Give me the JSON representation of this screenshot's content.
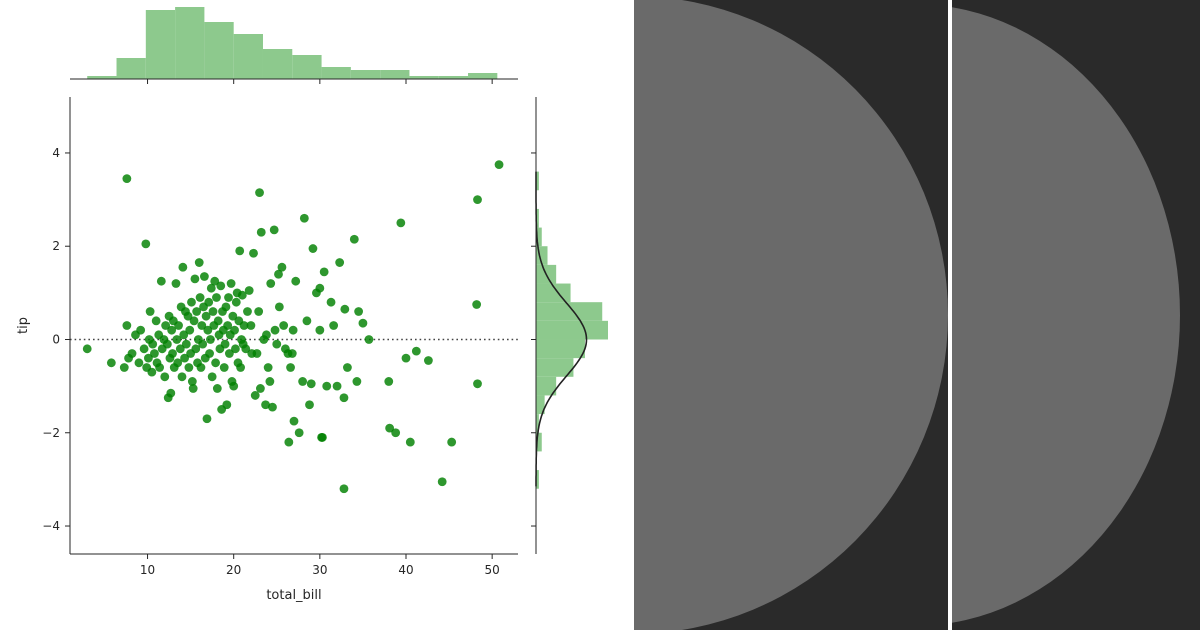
{
  "chart_data": [
    {
      "type": "scatter",
      "role": "joint-residual-plot",
      "title": "",
      "xlabel": "total_bill",
      "ylabel": "tip",
      "xlim": [
        1,
        53
      ],
      "ylim": [
        -4.6,
        5.2
      ],
      "xticks": [
        10,
        20,
        30,
        40,
        50
      ],
      "yticks": [
        -4,
        -2,
        0,
        2,
        4
      ],
      "ytick_labels": [
        "−4",
        "−2",
        "0",
        "2",
        "4"
      ],
      "reference_line": {
        "y": 0,
        "style": "dotted"
      },
      "point_color": "#008000",
      "grid": false,
      "points": [
        [
          3.0,
          -0.2
        ],
        [
          5.8,
          -0.5
        ],
        [
          7.3,
          -0.6
        ],
        [
          7.6,
          3.45
        ],
        [
          7.6,
          0.3
        ],
        [
          7.8,
          -0.4
        ],
        [
          8.2,
          -0.3
        ],
        [
          8.6,
          0.1
        ],
        [
          9.0,
          -0.5
        ],
        [
          9.2,
          0.2
        ],
        [
          9.6,
          -0.2
        ],
        [
          9.8,
          2.05
        ],
        [
          9.9,
          -0.6
        ],
        [
          10.1,
          -0.4
        ],
        [
          10.2,
          0.0
        ],
        [
          10.3,
          0.6
        ],
        [
          10.5,
          -0.7
        ],
        [
          10.6,
          -0.1
        ],
        [
          10.8,
          -0.3
        ],
        [
          11.0,
          0.4
        ],
        [
          11.1,
          -0.5
        ],
        [
          11.3,
          0.1
        ],
        [
          11.4,
          -0.6
        ],
        [
          11.6,
          1.25
        ],
        [
          11.7,
          -0.2
        ],
        [
          11.9,
          0.0
        ],
        [
          12.0,
          -0.8
        ],
        [
          12.1,
          0.3
        ],
        [
          12.3,
          -0.1
        ],
        [
          12.4,
          -1.25
        ],
        [
          12.5,
          0.5
        ],
        [
          12.6,
          -0.4
        ],
        [
          12.7,
          -1.15
        ],
        [
          12.8,
          0.2
        ],
        [
          12.9,
          -0.3
        ],
        [
          13.0,
          0.4
        ],
        [
          13.1,
          -0.6
        ],
        [
          13.3,
          1.2
        ],
        [
          13.4,
          0.0
        ],
        [
          13.5,
          -0.5
        ],
        [
          13.6,
          0.3
        ],
        [
          13.8,
          -0.2
        ],
        [
          13.9,
          0.7
        ],
        [
          14.0,
          -0.8
        ],
        [
          14.1,
          1.55
        ],
        [
          14.2,
          0.1
        ],
        [
          14.3,
          -0.4
        ],
        [
          14.4,
          0.6
        ],
        [
          14.5,
          -0.1
        ],
        [
          14.7,
          0.5
        ],
        [
          14.8,
          -0.6
        ],
        [
          14.9,
          0.2
        ],
        [
          15.0,
          -0.3
        ],
        [
          15.1,
          0.8
        ],
        [
          15.2,
          -0.9
        ],
        [
          15.3,
          -1.05
        ],
        [
          15.4,
          0.4
        ],
        [
          15.5,
          1.3
        ],
        [
          15.6,
          -0.2
        ],
        [
          15.7,
          0.6
        ],
        [
          15.8,
          -0.5
        ],
        [
          15.9,
          0.0
        ],
        [
          16.0,
          1.65
        ],
        [
          16.1,
          0.9
        ],
        [
          16.2,
          -0.6
        ],
        [
          16.3,
          0.3
        ],
        [
          16.4,
          -0.1
        ],
        [
          16.5,
          0.7
        ],
        [
          16.6,
          1.35
        ],
        [
          16.7,
          -0.4
        ],
        [
          16.8,
          0.5
        ],
        [
          16.9,
          -1.7
        ],
        [
          17.0,
          0.2
        ],
        [
          17.1,
          0.8
        ],
        [
          17.2,
          -0.3
        ],
        [
          17.3,
          0.0
        ],
        [
          17.4,
          1.1
        ],
        [
          17.5,
          -0.8
        ],
        [
          17.6,
          0.6
        ],
        [
          17.7,
          0.3
        ],
        [
          17.8,
          1.25
        ],
        [
          17.9,
          -0.5
        ],
        [
          18.0,
          0.9
        ],
        [
          18.1,
          -1.05
        ],
        [
          18.2,
          0.4
        ],
        [
          18.3,
          0.1
        ],
        [
          18.4,
          -0.2
        ],
        [
          18.5,
          1.15
        ],
        [
          18.6,
          -1.5
        ],
        [
          18.7,
          0.6
        ],
        [
          18.8,
          0.2
        ],
        [
          18.9,
          -0.6
        ],
        [
          19.0,
          -0.1
        ],
        [
          19.1,
          0.7
        ],
        [
          19.2,
          -1.4
        ],
        [
          19.3,
          0.3
        ],
        [
          19.4,
          0.9
        ],
        [
          19.5,
          -0.3
        ],
        [
          19.6,
          0.1
        ],
        [
          19.7,
          1.2
        ],
        [
          19.8,
          -0.9
        ],
        [
          19.9,
          0.5
        ],
        [
          20.0,
          -1.0
        ],
        [
          20.1,
          0.2
        ],
        [
          20.2,
          -0.2
        ],
        [
          20.3,
          0.8
        ],
        [
          20.4,
          1.0
        ],
        [
          20.5,
          -0.5
        ],
        [
          20.6,
          0.4
        ],
        [
          20.7,
          1.9
        ],
        [
          20.8,
          -0.6
        ],
        [
          20.9,
          0.0
        ],
        [
          21.0,
          0.95
        ],
        [
          21.1,
          -0.1
        ],
        [
          21.2,
          0.3
        ],
        [
          21.4,
          -0.2
        ],
        [
          21.6,
          0.6
        ],
        [
          21.8,
          1.05
        ],
        [
          22.0,
          0.3
        ],
        [
          22.1,
          -0.3
        ],
        [
          22.3,
          1.85
        ],
        [
          22.5,
          -1.2
        ],
        [
          22.7,
          -0.3
        ],
        [
          22.9,
          0.6
        ],
        [
          23.0,
          3.15
        ],
        [
          23.1,
          -1.05
        ],
        [
          23.2,
          2.3
        ],
        [
          23.5,
          0.0
        ],
        [
          23.7,
          -1.4
        ],
        [
          23.8,
          0.1
        ],
        [
          24.0,
          -0.6
        ],
        [
          24.2,
          -0.9
        ],
        [
          24.3,
          1.2
        ],
        [
          24.5,
          -1.45
        ],
        [
          24.7,
          2.35
        ],
        [
          24.8,
          0.2
        ],
        [
          25.0,
          -0.1
        ],
        [
          25.2,
          1.4
        ],
        [
          25.3,
          0.7
        ],
        [
          25.6,
          1.55
        ],
        [
          25.8,
          0.3
        ],
        [
          26.0,
          -0.2
        ],
        [
          26.3,
          -0.3
        ],
        [
          26.4,
          -2.2
        ],
        [
          26.6,
          -0.6
        ],
        [
          26.9,
          0.2
        ],
        [
          27.0,
          -1.75
        ],
        [
          27.2,
          1.25
        ],
        [
          27.6,
          -2.0
        ],
        [
          28.0,
          -0.9
        ],
        [
          28.2,
          2.6
        ],
        [
          28.5,
          0.4
        ],
        [
          28.8,
          -1.4
        ],
        [
          29.0,
          -0.95
        ],
        [
          29.2,
          1.95
        ],
        [
          29.6,
          1.0
        ],
        [
          30.0,
          1.1
        ],
        [
          30.0,
          0.2
        ],
        [
          30.2,
          -2.1
        ],
        [
          30.5,
          1.45
        ],
        [
          30.8,
          -1.0
        ],
        [
          31.3,
          0.8
        ],
        [
          31.6,
          0.3
        ],
        [
          32.0,
          -1.0
        ],
        [
          32.3,
          1.65
        ],
        [
          32.8,
          -1.25
        ],
        [
          32.9,
          0.65
        ],
        [
          33.2,
          -0.6
        ],
        [
          34.0,
          2.15
        ],
        [
          34.3,
          -0.9
        ],
        [
          34.5,
          0.6
        ],
        [
          35.0,
          0.35
        ],
        [
          35.7,
          0.0
        ],
        [
          38.0,
          -0.9
        ],
        [
          38.1,
          -1.9
        ],
        [
          38.8,
          -2.0
        ],
        [
          39.4,
          2.5
        ],
        [
          40.0,
          -0.4
        ],
        [
          40.5,
          -2.2
        ],
        [
          41.2,
          -0.25
        ],
        [
          42.6,
          -0.45
        ],
        [
          44.2,
          -3.05
        ],
        [
          45.3,
          -2.2
        ],
        [
          48.2,
          0.75
        ],
        [
          48.3,
          3.0
        ],
        [
          48.3,
          -0.95
        ],
        [
          50.8,
          3.75
        ],
        [
          32.8,
          -3.2
        ],
        [
          26.8,
          -0.3
        ],
        [
          30.3,
          -2.1
        ]
      ]
    },
    {
      "type": "histogram",
      "role": "top-marginal",
      "axis": "x",
      "color": "#8dc98d",
      "bins": [
        3.0,
        6.4,
        9.8,
        13.2,
        16.6,
        20.0,
        23.4,
        26.8,
        30.2,
        33.6,
        37.0,
        40.4,
        43.8,
        47.2,
        50.6
      ],
      "counts": [
        1,
        7,
        23,
        24,
        19,
        15,
        10,
        8,
        4,
        3,
        3,
        1,
        1,
        2
      ]
    },
    {
      "type": "histogram",
      "role": "right-marginal",
      "axis": "y",
      "orientation": "horizontal",
      "color": "#8dc98d",
      "bins": [
        -3.2,
        -2.8,
        -2.4,
        -2.0,
        -1.6,
        -1.2,
        -0.8,
        -0.4,
        0.0,
        0.4,
        0.8,
        1.2,
        1.6,
        2.0,
        2.4,
        2.8,
        3.2,
        3.6
      ],
      "counts": [
        1,
        0,
        2,
        1,
        3,
        7,
        13,
        17,
        25,
        23,
        12,
        7,
        4,
        2,
        1,
        0,
        1
      ],
      "kde": {
        "type": "normal",
        "mean": 0.0,
        "std": 0.78,
        "color": "#222222"
      }
    }
  ],
  "panels": [
    {
      "name": "panel-left",
      "background": "#2a2a2a",
      "shape_color": "#6a6a6a"
    },
    {
      "name": "panel-right",
      "background": "#2a2a2a",
      "shape_color": "#6a6a6a"
    }
  ]
}
